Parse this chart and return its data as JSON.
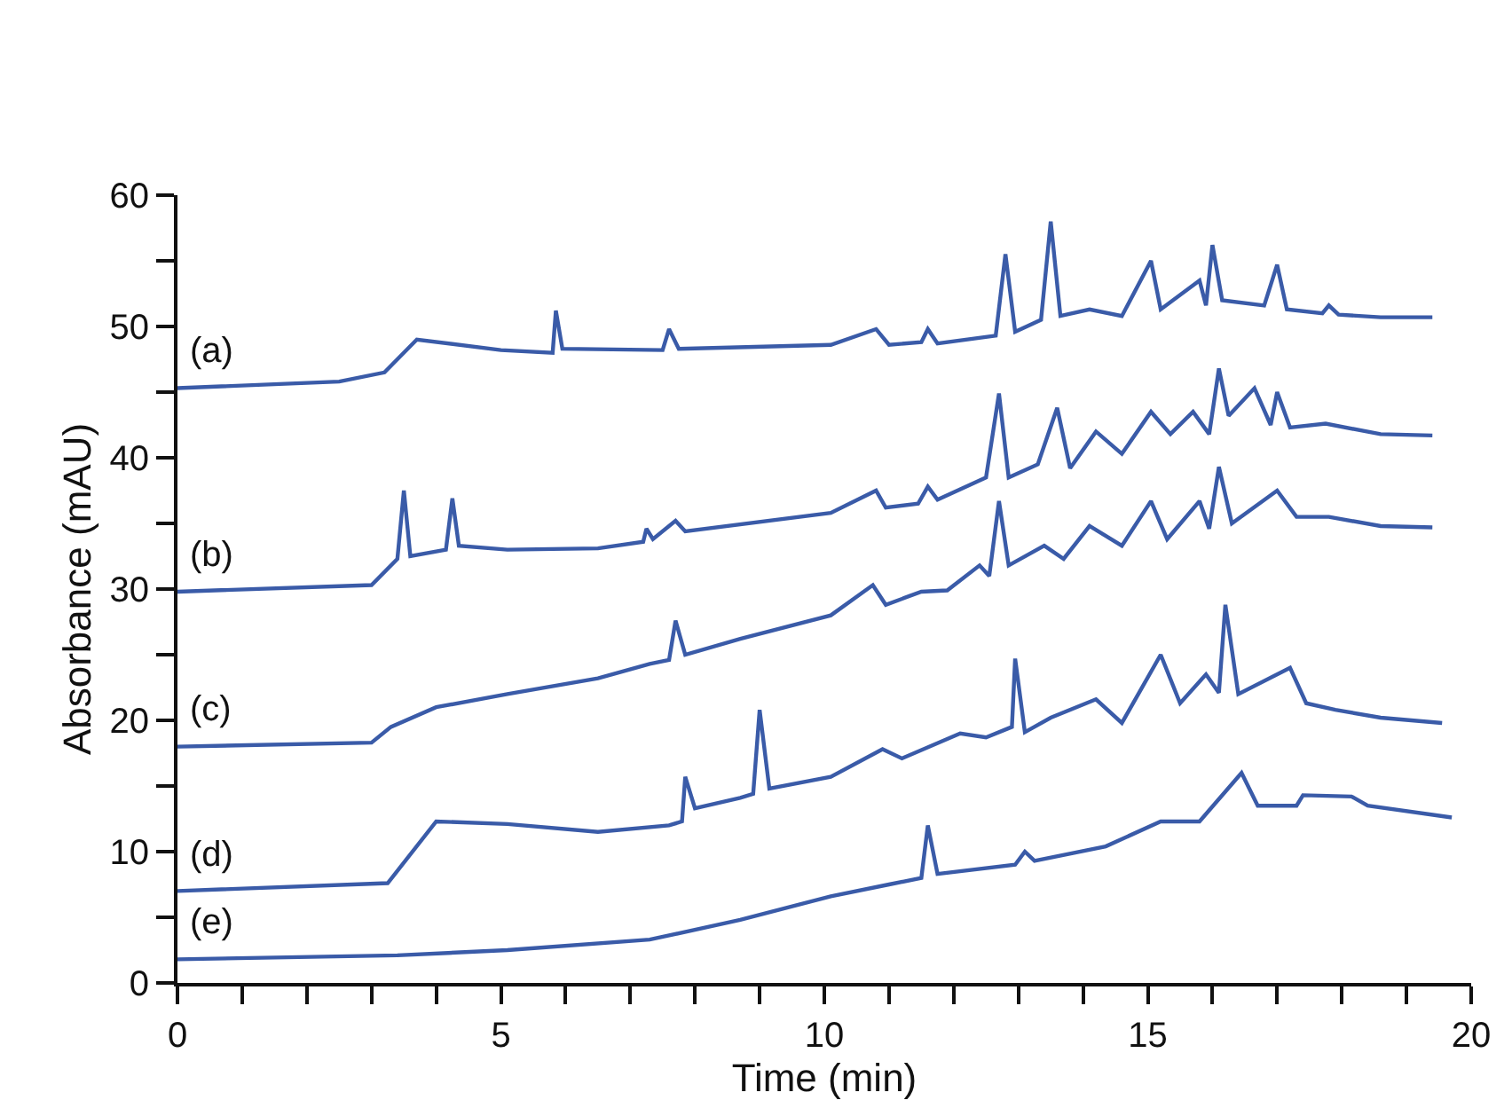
{
  "chart_data": {
    "type": "line",
    "xlabel": "Time (min)",
    "ylabel": "Absorbance (mAU)",
    "xlim": [
      0,
      20
    ],
    "ylim": [
      0,
      60
    ],
    "xticks": [
      0,
      {
        "value": 1,
        "label": null
      },
      {
        "value": 2,
        "label": null
      },
      {
        "value": 3,
        "label": null
      },
      {
        "value": 4,
        "label": null
      },
      5,
      {
        "value": 6,
        "label": null
      },
      {
        "value": 7,
        "label": null
      },
      {
        "value": 8,
        "label": null
      },
      {
        "value": 9,
        "label": null
      },
      10,
      {
        "value": 11,
        "label": null
      },
      {
        "value": 12,
        "label": null
      },
      {
        "value": 13,
        "label": null
      },
      {
        "value": 14,
        "label": null
      },
      15,
      {
        "value": 16,
        "label": null
      },
      {
        "value": 17,
        "label": null
      },
      {
        "value": 18,
        "label": null
      },
      {
        "value": 19,
        "label": null
      },
      20
    ],
    "yticks": [
      0,
      {
        "value": 5,
        "label": null
      },
      10,
      {
        "value": 15,
        "label": null
      },
      20,
      {
        "value": 25,
        "label": null
      },
      30,
      {
        "value": 35,
        "label": null
      },
      40,
      {
        "value": 45,
        "label": null
      },
      50,
      {
        "value": 55,
        "label": null
      },
      60
    ],
    "legend": false,
    "marker": "none",
    "line_style": "solid",
    "series": [
      {
        "name": "(a)",
        "color": "#3a5ba8",
        "x": [
          0,
          2.5,
          3.2,
          3.7,
          5.0,
          5.8,
          5.85,
          5.95,
          7.5,
          7.6,
          7.75,
          10.1,
          10.8,
          11.0,
          11.5,
          11.6,
          11.75,
          12.65,
          12.8,
          12.95,
          13.35,
          13.5,
          13.65,
          14.1,
          14.6,
          15.05,
          15.2,
          15.8,
          15.9,
          16.0,
          16.15,
          16.8,
          17.0,
          17.15,
          17.7,
          17.8,
          17.95,
          18.6,
          19.4
        ],
        "values": [
          45.3,
          45.8,
          46.5,
          49,
          48.2,
          48,
          51.2,
          48.3,
          48.2,
          49.8,
          48.3,
          48.6,
          49.8,
          48.6,
          48.8,
          49.8,
          48.7,
          49.3,
          55.5,
          49.6,
          50.5,
          58,
          50.8,
          51.3,
          50.8,
          55,
          51.3,
          53.5,
          51.6,
          56.2,
          52,
          51.6,
          54.7,
          51.3,
          51,
          51.6,
          50.9,
          50.7,
          50.7
        ]
      },
      {
        "name": "(b)",
        "color": "#3a5ba8",
        "x": [
          0,
          3.0,
          3.4,
          3.5,
          3.6,
          4.15,
          4.25,
          4.35,
          5.1,
          6.5,
          7.2,
          7.25,
          7.35,
          7.7,
          7.85,
          10.1,
          10.8,
          10.95,
          11.45,
          11.6,
          11.75,
          12.5,
          12.7,
          12.85,
          13.3,
          13.6,
          13.8,
          14.2,
          14.6,
          15.05,
          15.35,
          15.7,
          15.95,
          16.1,
          16.25,
          16.65,
          16.9,
          17.0,
          17.2,
          17.75,
          18.6,
          19.4
        ],
        "values": [
          29.8,
          30.3,
          32.3,
          37.5,
          32.5,
          33.0,
          36.9,
          33.3,
          33.0,
          33.1,
          33.6,
          34.6,
          33.8,
          35.2,
          34.4,
          35.8,
          37.5,
          36.2,
          36.5,
          37.8,
          36.8,
          38.5,
          44.9,
          38.5,
          39.5,
          43.8,
          39.2,
          42,
          40.3,
          43.5,
          41.8,
          43.5,
          41.8,
          46.8,
          43.2,
          45.3,
          42.5,
          45,
          42.3,
          42.6,
          41.8,
          41.7
        ]
      },
      {
        "name": "(c)",
        "color": "#3a5ba8",
        "x": [
          0,
          3.0,
          3.3,
          4.0,
          5.1,
          6.5,
          7.3,
          7.6,
          7.7,
          7.85,
          8.7,
          10.1,
          10.75,
          10.95,
          11.5,
          11.9,
          12.4,
          12.55,
          12.7,
          12.85,
          13.4,
          13.7,
          14.1,
          14.6,
          15.05,
          15.3,
          15.8,
          15.95,
          16.1,
          16.3,
          17.0,
          17.3,
          17.8,
          18.6,
          19.4
        ],
        "values": [
          18,
          18.3,
          19.5,
          21,
          22,
          23.2,
          24.3,
          24.6,
          27.6,
          25,
          26.2,
          28,
          30.3,
          28.8,
          29.8,
          29.9,
          31.8,
          31,
          36.7,
          31.8,
          33.3,
          32.3,
          34.8,
          33.3,
          36.7,
          33.8,
          36.7,
          34.6,
          39.3,
          35,
          37.5,
          35.5,
          35.5,
          34.8,
          34.7
        ]
      },
      {
        "name": "(d)",
        "color": "#3a5ba8",
        "x": [
          0,
          3.25,
          4.0,
          5.1,
          6.5,
          7.6,
          7.8,
          7.85,
          8.0,
          8.7,
          8.9,
          9.0,
          9.15,
          10.1,
          10.9,
          11.2,
          12.1,
          12.5,
          12.9,
          12.95,
          13.1,
          13.5,
          14.2,
          14.6,
          15.2,
          15.5,
          15.9,
          16.1,
          16.2,
          16.4,
          17.2,
          17.45,
          17.9,
          18.6,
          19.55
        ],
        "values": [
          7.0,
          7.6,
          12.3,
          12.1,
          11.5,
          12.0,
          12.3,
          15.7,
          13.3,
          14.1,
          14.4,
          20.8,
          14.8,
          15.7,
          17.8,
          17.1,
          19,
          18.7,
          19.5,
          24.7,
          19.1,
          20.2,
          21.6,
          19.8,
          25,
          21.3,
          23.5,
          22.1,
          28.8,
          22,
          24,
          21.3,
          20.8,
          20.2,
          19.8
        ]
      },
      {
        "name": "(e)",
        "color": "#3a5ba8",
        "x": [
          0,
          3.4,
          5.1,
          7.3,
          8.7,
          10.1,
          11.0,
          11.5,
          11.6,
          11.75,
          12.95,
          13.1,
          13.25,
          14.35,
          15.2,
          15.8,
          16.45,
          16.7,
          17.3,
          17.4,
          18.15,
          18.4,
          19.7
        ],
        "values": [
          1.8,
          2.1,
          2.5,
          3.3,
          4.8,
          6.6,
          7.5,
          8.0,
          12,
          8.3,
          9,
          10,
          9.3,
          10.4,
          12.3,
          12.3,
          16,
          13.5,
          13.5,
          14.3,
          14.2,
          13.5,
          12.6
        ]
      }
    ]
  }
}
